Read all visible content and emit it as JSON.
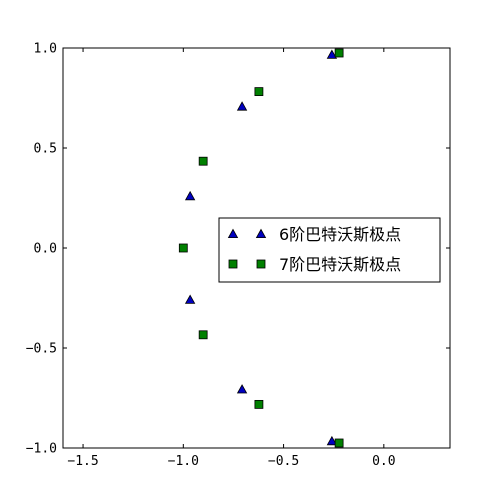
{
  "chart_data": {
    "type": "scatter",
    "title": "",
    "xlabel": "",
    "ylabel": "",
    "xlim": [
      -1.6,
      0.33
    ],
    "ylim": [
      -1.0,
      1.0
    ],
    "x_ticks": [
      -1.5,
      -1.0,
      -0.5,
      0.0
    ],
    "x_tick_labels": [
      "−1.5",
      "−1.0",
      "−0.5",
      "0.0"
    ],
    "y_ticks": [
      1.0,
      0.5,
      0.0,
      -0.5,
      -1.0
    ],
    "y_tick_labels": [
      "1.0",
      "0.5",
      "0.0",
      "−0.5",
      "−1.0"
    ],
    "grid": false,
    "legend_position": "center-right",
    "series": [
      {
        "name": "6阶巴特沃斯极点",
        "marker": "triangle",
        "color": "#0000bf",
        "x": [
          -0.259,
          -0.707,
          -0.966,
          -0.966,
          -0.707,
          -0.259
        ],
        "y": [
          0.966,
          0.707,
          0.259,
          -0.259,
          -0.707,
          -0.966
        ]
      },
      {
        "name": "7阶巴特沃斯极点",
        "marker": "square",
        "color": "#008000",
        "x": [
          -0.223,
          -0.623,
          -0.901,
          -1.0,
          -0.901,
          -0.623,
          -0.223
        ],
        "y": [
          0.975,
          0.782,
          0.434,
          0.0,
          -0.434,
          -0.782,
          -0.975
        ]
      }
    ]
  }
}
